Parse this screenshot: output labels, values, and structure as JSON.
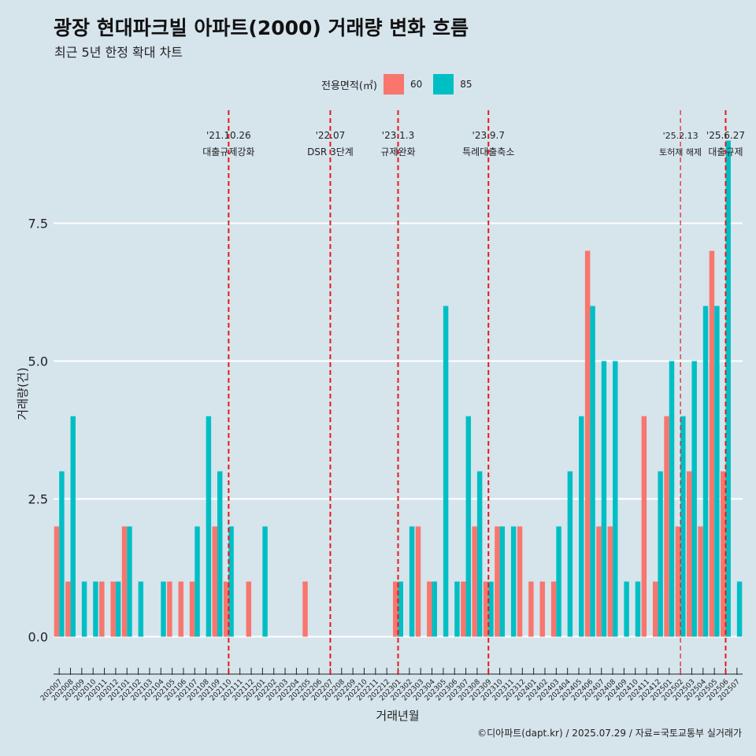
{
  "header": {
    "title": "광장 현대파크빌 아파트(2000) 거래량 변화 흐름",
    "subtitle": "최근 5년 한정 확대 차트"
  },
  "legend": {
    "title": "전용면적(㎡)",
    "items": [
      {
        "label": "60",
        "color": "#f8766d"
      },
      {
        "label": "85",
        "color": "#00bfc4"
      }
    ]
  },
  "footer": {
    "credit": "©디아파트(dapt.kr) / 2025.07.29 / 자료=국토교통부 실거래가"
  },
  "chart_data": {
    "type": "bar",
    "title": "광장 현대파크빌 아파트(2000) 거래량 변화 흐름",
    "xlabel": "거래년월",
    "ylabel": "거래량(건)",
    "ylim": [
      -0.45,
      9.55
    ],
    "yticks": [
      {
        "value": 0,
        "label": "0.0"
      },
      {
        "value": 2.5,
        "label": "2.5"
      },
      {
        "value": 5,
        "label": "5.0"
      },
      {
        "value": 7.5,
        "label": "7.5"
      }
    ],
    "categories": [
      "202007",
      "202008",
      "202009",
      "202010",
      "202011",
      "202012",
      "202101",
      "202102",
      "202103",
      "202104",
      "202105",
      "202106",
      "202107",
      "202108",
      "202109",
      "202110",
      "202111",
      "202112",
      "202201",
      "202202",
      "202203",
      "202204",
      "202205",
      "202206",
      "202207",
      "202208",
      "202209",
      "202210",
      "202211",
      "202212",
      "202301",
      "202302",
      "202303",
      "202304",
      "202305",
      "202306",
      "202307",
      "202308",
      "202309",
      "202310",
      "202311",
      "202312",
      "202401",
      "202402",
      "202403",
      "202404",
      "202405",
      "202406",
      "202407",
      "202408",
      "202409",
      "202410",
      "202411",
      "202412",
      "202501",
      "202502",
      "202503",
      "202504",
      "202505",
      "202506",
      "202507"
    ],
    "series": [
      {
        "name": "60",
        "color": "#f8766d",
        "values": [
          2,
          1,
          0,
          0,
          1,
          1,
          2,
          0,
          0,
          0,
          1,
          1,
          1,
          0,
          2,
          1,
          0,
          1,
          0,
          0,
          0,
          0,
          1,
          0,
          0,
          0,
          0,
          0,
          0,
          0,
          1,
          0,
          2,
          1,
          0,
          0,
          1,
          2,
          1,
          2,
          0,
          2,
          1,
          1,
          1,
          0,
          0,
          7,
          2,
          2,
          0,
          0,
          4,
          1,
          4,
          2,
          3,
          2,
          7,
          3,
          0
        ]
      },
      {
        "name": "85",
        "color": "#00bfc4",
        "values": [
          3,
          4,
          1,
          1,
          0,
          1,
          2,
          1,
          0,
          1,
          0,
          0,
          2,
          4,
          3,
          2,
          0,
          0,
          2,
          0,
          0,
          0,
          0,
          0,
          0,
          0,
          0,
          0,
          0,
          0,
          1,
          2,
          0,
          1,
          6,
          1,
          4,
          3,
          1,
          2,
          2,
          0,
          0,
          0,
          2,
          3,
          4,
          6,
          5,
          5,
          1,
          1,
          0,
          3,
          5,
          4,
          5,
          6,
          6,
          9,
          1
        ]
      }
    ],
    "annotations": [
      {
        "at": "202110",
        "date": "'21.10.26",
        "label": "대출규제강화",
        "style": "bold"
      },
      {
        "at": "202207",
        "date": "'22.07",
        "label": "DSR 3단계",
        "style": "bold"
      },
      {
        "at": "202301",
        "date": "'23.1.3",
        "label": "규제완화",
        "style": "bold"
      },
      {
        "at": "202309",
        "date": "'23.9.7",
        "label": "특례대출축소",
        "style": "bold"
      },
      {
        "at": "202502",
        "date": "'25.2.13",
        "label": "토허제 해제",
        "style": "thin"
      },
      {
        "at": "202506",
        "date": "'25.6.27",
        "label": "대출규제",
        "style": "bold"
      }
    ]
  }
}
